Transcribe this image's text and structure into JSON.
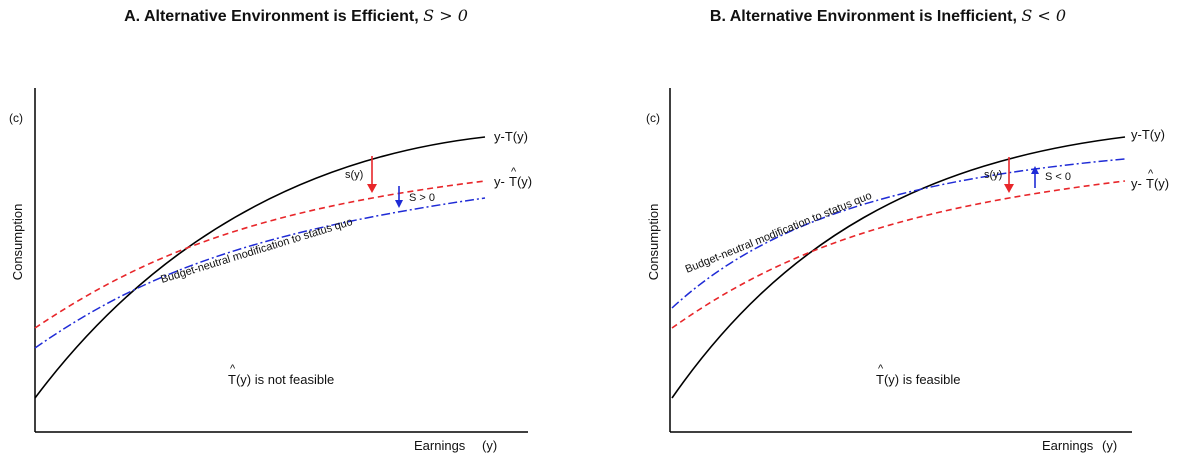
{
  "panels": [
    {
      "title": "A. Alternative Environment is Efficient,",
      "title_math": "S > 0",
      "y_label": "Consumption",
      "c_label": "(c)",
      "x_label": "Earnings",
      "x_symbol": "(y)",
      "curve_status_quo": "y-T(y)",
      "curve_alt_prefix": "y-",
      "curve_alt_suffix": "T(y)",
      "hat": "^",
      "budget_neutral": "Budget-neutral modification to status quo",
      "s_label": "s(y)",
      "S_label": "S > 0",
      "feasibility_suffix": "T(y) is not feasible",
      "colors": {
        "status_quo": "#000000",
        "alternative": "#e8262a",
        "budget_neutral": "#1f2bd6"
      }
    },
    {
      "title": "B. Alternative Environment is Inefficient,",
      "title_math": "S < 0",
      "y_label": "Consumption",
      "c_label": "(c)",
      "x_label": "Earnings",
      "x_symbol": "(y)",
      "curve_status_quo": "y-T(y)",
      "curve_alt_prefix": "y-",
      "curve_alt_suffix": "T(y)",
      "hat": "^",
      "budget_neutral": "Budget-neutral modification to status quo",
      "s_label": "s(y)",
      "S_label": "S < 0",
      "feasibility_suffix": "T(y) is feasible",
      "colors": {
        "status_quo": "#000000",
        "alternative": "#e8262a",
        "budget_neutral": "#1f2bd6"
      }
    }
  ]
}
